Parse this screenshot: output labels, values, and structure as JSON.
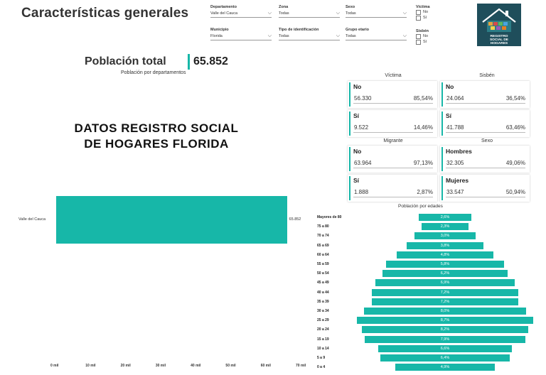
{
  "header": {
    "title": "Características generales"
  },
  "filters": {
    "departamento": {
      "label": "Departamento",
      "value": "Valle del Cauca"
    },
    "zona": {
      "label": "Zona",
      "value": "Todas"
    },
    "sexo": {
      "label": "Sexo",
      "value": "Todas"
    },
    "municipio": {
      "label": "Municipio",
      "value": "Florida"
    },
    "tipo_id": {
      "label": "Tipo de identificación",
      "value": "Todas"
    },
    "grupo_etario": {
      "label": "Grupo etario",
      "value": "Todas"
    },
    "victima": {
      "label": "Víctima",
      "options": [
        "No",
        "Sí"
      ]
    },
    "sisben": {
      "label": "Sisbén",
      "options": [
        "No",
        "Sí"
      ]
    }
  },
  "logo": {
    "text": "REGISTRO SOCIAL DE HOGARES"
  },
  "poblacion": {
    "label": "Población total",
    "value": "65.852",
    "subtitle": "Población por departamentos"
  },
  "banner": {
    "line1": "DATOS  REGISTRO SOCIAL",
    "line2": "DE  HOGARES  FLORIDA"
  },
  "kpis": {
    "victima": {
      "header": "Víctima",
      "no": {
        "label": "No",
        "count": "56.330",
        "pct": "85,54%"
      },
      "si": {
        "label": "Sí",
        "count": "9.522",
        "pct": "14,46%"
      }
    },
    "sisben": {
      "header": "Sisbén",
      "no": {
        "label": "No",
        "count": "24.064",
        "pct": "36,54%"
      },
      "si": {
        "label": "Sí",
        "count": "41.788",
        "pct": "63,46%"
      }
    },
    "migrante": {
      "header": "Migrante",
      "no": {
        "label": "No",
        "count": "63.964",
        "pct": "97,13%"
      },
      "si": {
        "label": "Sí",
        "count": "1.888",
        "pct": "2,87%"
      }
    },
    "sexo": {
      "header": "Sexo",
      "hombres": {
        "label": "Hombres",
        "count": "32.305",
        "pct": "49,06%"
      },
      "mujeres": {
        "label": "Mujeres",
        "count": "33.547",
        "pct": "50,94%"
      }
    }
  },
  "chart_data": [
    {
      "type": "bar",
      "orientation": "horizontal",
      "categories": [
        "Valle del Cauca"
      ],
      "values": [
        65852
      ],
      "data_labels": [
        "65.852"
      ],
      "xticks": [
        "0 mil",
        "10 mil",
        "20 mil",
        "30 mil",
        "40 mil",
        "50 mil",
        "60 mil",
        "70 mil"
      ],
      "xlim": [
        0,
        70000
      ]
    },
    {
      "type": "bar",
      "orientation": "horizontal-centered",
      "title": "Población por edades",
      "categories": [
        "Mayores de 80",
        "75 a 80",
        "70 a 74",
        "65 a 69",
        "60 a 64",
        "55 a 59",
        "50 a 54",
        "45 a 49",
        "40 a 44",
        "35 a 39",
        "30 a 34",
        "25 a 29",
        "20 a 24",
        "15 a 19",
        "10 a 14",
        "5 a 9",
        "0 a 4"
      ],
      "values": [
        2.6,
        2.3,
        3.0,
        3.8,
        4.8,
        5.8,
        6.2,
        6.9,
        7.2,
        7.2,
        8.0,
        8.7,
        8.2,
        7.9,
        6.6,
        6.4,
        4.9
      ],
      "data_labels": [
        "2,6%",
        "2,3%",
        "3,0%",
        "3,8%",
        "4,8%",
        "5,8%",
        "6,2%",
        "6,9%",
        "7,2%",
        "7,2%",
        "8,0%",
        "8,7%",
        "8,2%",
        "7,9%",
        "6,6%",
        "6,4%",
        "4,9%"
      ]
    }
  ]
}
